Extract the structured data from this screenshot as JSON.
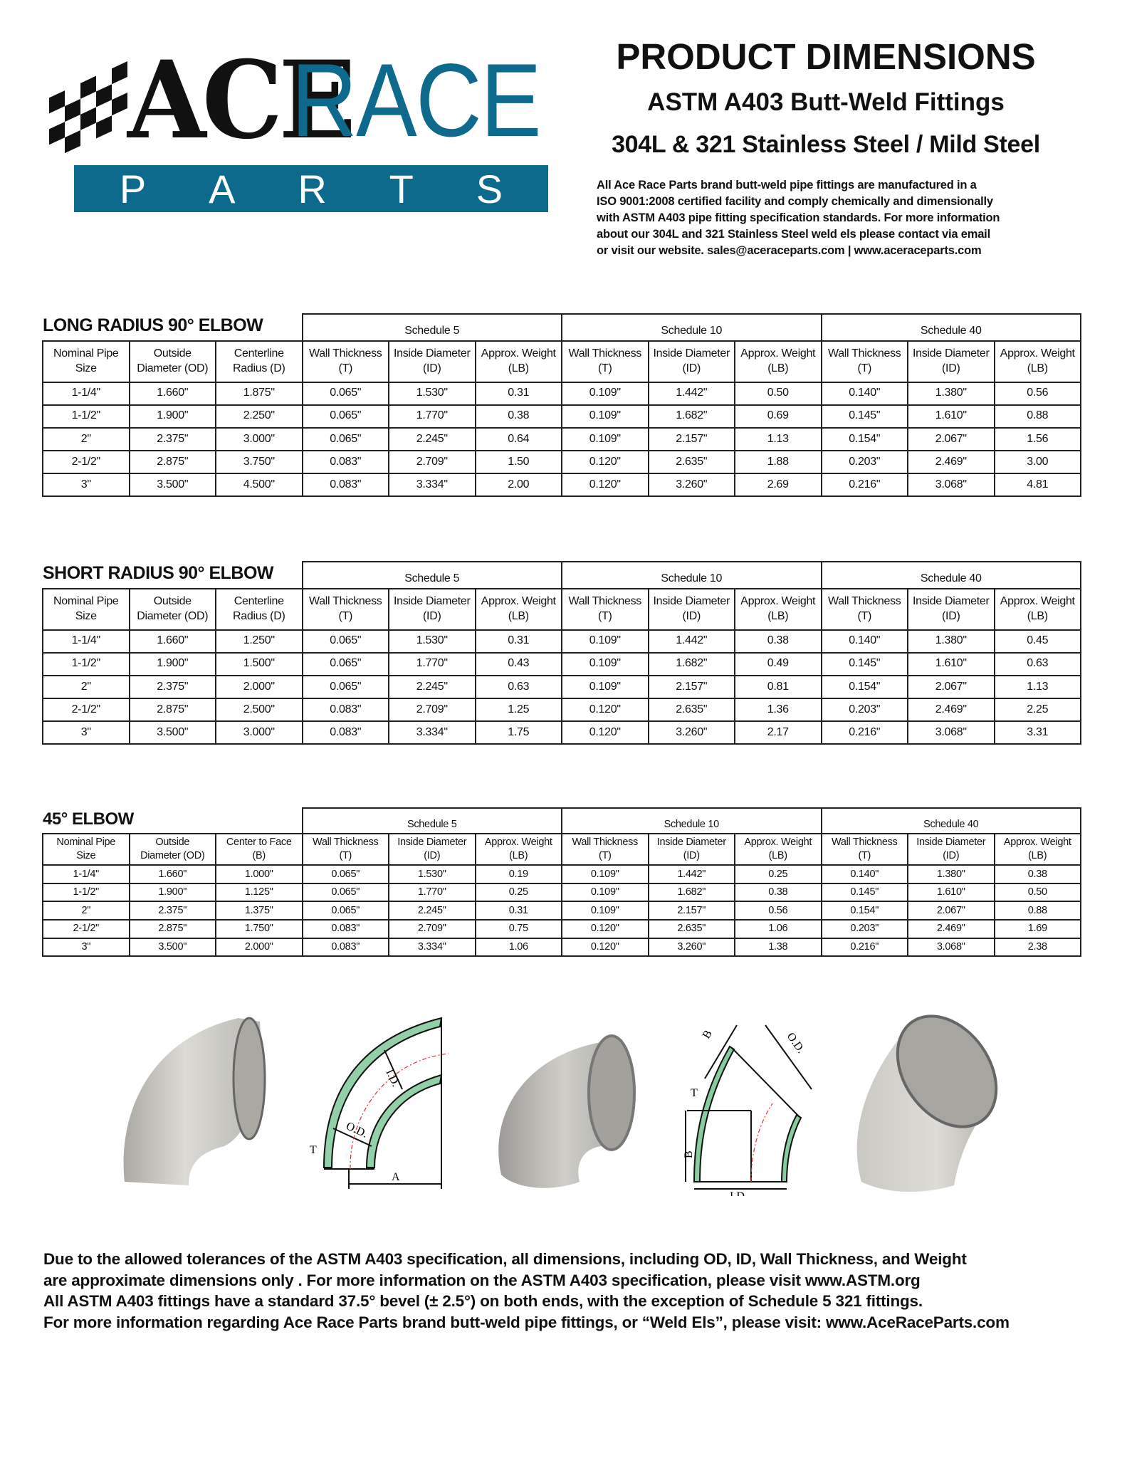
{
  "logo": {
    "word1": "ACE",
    "word2": "RACE",
    "bar_letters": [
      "P",
      "A",
      "R",
      "T",
      "S"
    ],
    "brand_color": "#0e6a8c"
  },
  "header": {
    "title": "PRODUCT DIMENSIONS",
    "subtitle1": "ASTM A403 Butt-Weld Fittings",
    "subtitle2": "304L & 321 Stainless Steel / Mild Steel",
    "intro_lines": [
      "All Ace Race Parts brand butt-weld pipe fittings are manufactured in a",
      "ISO 9001:2008 certified facility and comply chemically and dimensionally",
      "with ASTM A403 pipe fitting specification standards. For more information",
      "about our 304L and 321 Stainless Steel weld els please contact via email",
      "or visit our website. sales@aceraceparts.com | www.aceraceparts.com"
    ]
  },
  "schedules": [
    "Schedule 5",
    "Schedule 10",
    "Schedule 40"
  ],
  "tables": [
    {
      "title": "LONG RADIUS 90° ELBOW",
      "columns": [
        [
          "Nominal Pipe",
          "Size"
        ],
        [
          "Outside",
          "Diameter (OD)"
        ],
        [
          "Centerline",
          "Radius (D)"
        ],
        [
          "Wall Thickness",
          "(T)"
        ],
        [
          "Inside Diameter",
          "(ID)"
        ],
        [
          "Approx. Weight",
          "(LB)"
        ],
        [
          "Wall Thickness",
          "(T)"
        ],
        [
          "Inside Diameter",
          "(ID)"
        ],
        [
          "Approx. Weight",
          "(LB)"
        ],
        [
          "Wall Thickness",
          "(T)"
        ],
        [
          "Inside Diameter",
          "(ID)"
        ],
        [
          "Approx. Weight",
          "(LB)"
        ]
      ],
      "rows": [
        [
          "1-1/4\"",
          "1.660\"",
          "1.875\"",
          "0.065\"",
          "1.530\"",
          "0.31",
          "0.109\"",
          "1.442\"",
          "0.50",
          "0.140\"",
          "1.380\"",
          "0.56"
        ],
        [
          "1-1/2\"",
          "1.900\"",
          "2.250\"",
          "0.065\"",
          "1.770\"",
          "0.38",
          "0.109\"",
          "1.682\"",
          "0.69",
          "0.145\"",
          "1.610\"",
          "0.88"
        ],
        [
          "2\"",
          "2.375\"",
          "3.000\"",
          "0.065\"",
          "2.245\"",
          "0.64",
          "0.109\"",
          "2.157\"",
          "1.13",
          "0.154\"",
          "2.067\"",
          "1.56"
        ],
        [
          "2-1/2\"",
          "2.875\"",
          "3.750\"",
          "0.083\"",
          "2.709\"",
          "1.50",
          "0.120\"",
          "2.635\"",
          "1.88",
          "0.203\"",
          "2.469\"",
          "3.00"
        ],
        [
          "3\"",
          "3.500\"",
          "4.500\"",
          "0.083\"",
          "3.334\"",
          "2.00",
          "0.120\"",
          "3.260\"",
          "2.69",
          "0.216\"",
          "3.068\"",
          "4.81"
        ]
      ]
    },
    {
      "title": "SHORT RADIUS 90° ELBOW",
      "columns": [
        [
          "Nominal Pipe",
          "Size"
        ],
        [
          "Outside",
          "Diameter (OD)"
        ],
        [
          "Centerline",
          "Radius (D)"
        ],
        [
          "Wall Thickness",
          "(T)"
        ],
        [
          "Inside Diameter",
          "(ID)"
        ],
        [
          "Approx. Weight",
          "(LB)"
        ],
        [
          "Wall Thickness",
          "(T)"
        ],
        [
          "Inside Diameter",
          "(ID)"
        ],
        [
          "Approx. Weight",
          "(LB)"
        ],
        [
          "Wall Thickness",
          "(T)"
        ],
        [
          "Inside Diameter",
          "(ID)"
        ],
        [
          "Approx. Weight",
          "(LB)"
        ]
      ],
      "rows": [
        [
          "1-1/4\"",
          "1.660\"",
          "1.250\"",
          "0.065\"",
          "1.530\"",
          "0.31",
          "0.109\"",
          "1.442\"",
          "0.38",
          "0.140\"",
          "1.380\"",
          "0.45"
        ],
        [
          "1-1/2\"",
          "1.900\"",
          "1.500\"",
          "0.065\"",
          "1.770\"",
          "0.43",
          "0.109\"",
          "1.682\"",
          "0.49",
          "0.145\"",
          "1.610\"",
          "0.63"
        ],
        [
          "2\"",
          "2.375\"",
          "2.000\"",
          "0.065\"",
          "2.245\"",
          "0.63",
          "0.109\"",
          "2.157\"",
          "0.81",
          "0.154\"",
          "2.067\"",
          "1.13"
        ],
        [
          "2-1/2\"",
          "2.875\"",
          "2.500\"",
          "0.083\"",
          "2.709\"",
          "1.25",
          "0.120\"",
          "2.635\"",
          "1.36",
          "0.203\"",
          "2.469\"",
          "2.25"
        ],
        [
          "3\"",
          "3.500\"",
          "3.000\"",
          "0.083\"",
          "3.334\"",
          "1.75",
          "0.120\"",
          "3.260\"",
          "2.17",
          "0.216\"",
          "3.068\"",
          "3.31"
        ]
      ]
    },
    {
      "title": "45° ELBOW",
      "columns": [
        [
          "Nominal Pipe",
          "Size"
        ],
        [
          "Outside",
          "Diameter (OD)"
        ],
        [
          "Center to Face",
          "(B)"
        ],
        [
          "Wall Thickness",
          "(T)"
        ],
        [
          "Inside Diameter",
          "(ID)"
        ],
        [
          "Approx. Weight",
          "(LB)"
        ],
        [
          "Wall Thickness",
          "(T)"
        ],
        [
          "Inside Diameter",
          "(ID)"
        ],
        [
          "Approx. Weight",
          "(LB)"
        ],
        [
          "Wall Thickness",
          "(T)"
        ],
        [
          "Inside Diameter",
          "(ID)"
        ],
        [
          "Approx. Weight",
          "(LB)"
        ]
      ],
      "rows": [
        [
          "1-1/4\"",
          "1.660\"",
          "1.000\"",
          "0.065\"",
          "1.530\"",
          "0.19",
          "0.109\"",
          "1.442\"",
          "0.25",
          "0.140\"",
          "1.380\"",
          "0.38"
        ],
        [
          "1-1/2\"",
          "1.900\"",
          "1.125\"",
          "0.065\"",
          "1.770\"",
          "0.25",
          "0.109\"",
          "1.682\"",
          "0.38",
          "0.145\"",
          "1.610\"",
          "0.50"
        ],
        [
          "2\"",
          "2.375\"",
          "1.375\"",
          "0.065\"",
          "2.245\"",
          "0.31",
          "0.109\"",
          "2.157\"",
          "0.56",
          "0.154\"",
          "2.067\"",
          "0.88"
        ],
        [
          "2-1/2\"",
          "2.875\"",
          "1.750\"",
          "0.083\"",
          "2.709\"",
          "0.75",
          "0.120\"",
          "2.635\"",
          "1.06",
          "0.203\"",
          "2.469\"",
          "1.69"
        ],
        [
          "3\"",
          "3.500\"",
          "2.000\"",
          "0.083\"",
          "3.334\"",
          "1.06",
          "0.120\"",
          "3.260\"",
          "1.38",
          "0.216\"",
          "3.068\"",
          "2.38"
        ]
      ]
    }
  ],
  "diagrams": {
    "d90": {
      "labels": [
        "I.D.",
        "O.D.",
        "T",
        "A"
      ]
    },
    "d45": {
      "labels": [
        "B",
        "O.D.",
        "T",
        "B",
        "I.D."
      ]
    },
    "hatch_color": "#3aa860"
  },
  "footer_lines": [
    "Due to the allowed tolerances of the ASTM A403 specification, all dimensions, including OD, ID, Wall Thickness, and Weight",
    "are approximate dimensions only . For more information on the ASTM A403 specification, please visit www.ASTM.org",
    "All ASTM A403 fittings have a standard 37.5° bevel (± 2.5°) on both ends, with the exception of Schedule 5 321 fittings.",
    "For more information regarding Ace Race Parts brand butt-weld pipe fittings, or “Weld Els”, please visit: www.AceRaceParts.com"
  ]
}
